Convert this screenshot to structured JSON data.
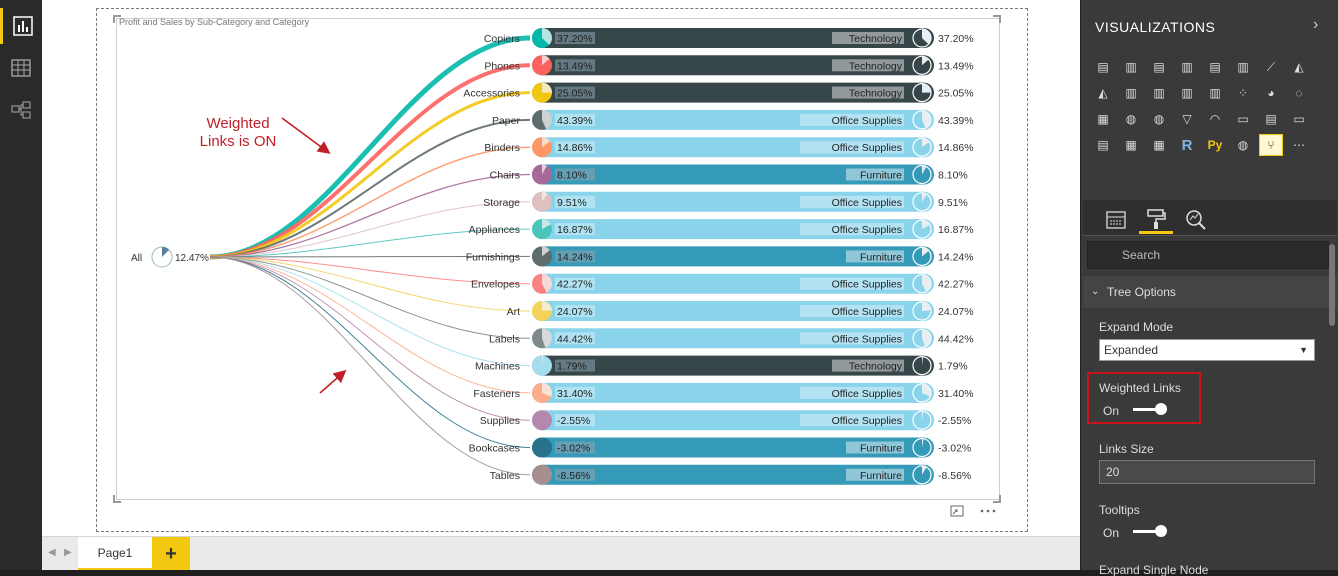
{
  "rail": {
    "items": [
      {
        "name": "report-view",
        "icon": "bar-chart-icon",
        "active": true
      },
      {
        "name": "data-view",
        "icon": "table-icon",
        "active": false
      },
      {
        "name": "model-view",
        "icon": "relationships-icon",
        "active": false
      }
    ]
  },
  "visual": {
    "title": "Profit and Sales by Sub-Category and Category",
    "root_label": "All",
    "root_pct": "12.47%",
    "annotation_text_line1": "Weighted",
    "annotation_text_line2": "Links is ON"
  },
  "colors": {
    "accent": "#f2c811",
    "technology": "#374649",
    "office_supplies": "#8ad4eb",
    "furniture": "#3599b8",
    "annotation": "#c0202a"
  },
  "chart_data": {
    "type": "tree",
    "title": "Profit and Sales by Sub-Category and Category",
    "root": {
      "label": "All",
      "pct": "12.47%"
    },
    "nodes": [
      {
        "label": "Copiers",
        "pct": "37.20%",
        "category": "Technology",
        "weight": 10,
        "link_color": "#01b8aa"
      },
      {
        "label": "Phones",
        "pct": "13.49%",
        "category": "Technology",
        "weight": 8,
        "link_color": "#fd625e"
      },
      {
        "label": "Accessories",
        "pct": "25.05%",
        "category": "Technology",
        "weight": 6,
        "link_color": "#f2c80f"
      },
      {
        "label": "Paper",
        "pct": "43.39%",
        "category": "Office Supplies",
        "weight": 4,
        "link_color": "#5f6b6d"
      },
      {
        "label": "Binders",
        "pct": "14.86%",
        "category": "Office Supplies",
        "weight": 3,
        "link_color": "#fe9666"
      },
      {
        "label": "Chairs",
        "pct": "8.10%",
        "category": "Furniture",
        "weight": 2.5,
        "link_color": "#a66999"
      },
      {
        "label": "Storage",
        "pct": "9.51%",
        "category": "Office Supplies",
        "weight": 2,
        "link_color": "#dfbfbf"
      },
      {
        "label": "Appliances",
        "pct": "16.87%",
        "category": "Office Supplies",
        "weight": 1.5,
        "link_color": "#4ac5bb"
      },
      {
        "label": "Furnishings",
        "pct": "14.24%",
        "category": "Furniture",
        "weight": 1.5,
        "link_color": "#5f6b6d"
      },
      {
        "label": "Envelopes",
        "pct": "42.27%",
        "category": "Office Supplies",
        "weight": 1,
        "link_color": "#fb8281"
      },
      {
        "label": "Art",
        "pct": "24.07%",
        "category": "Office Supplies",
        "weight": 1,
        "link_color": "#f4d25a"
      },
      {
        "label": "Labels",
        "pct": "44.42%",
        "category": "Office Supplies",
        "weight": 1,
        "link_color": "#7f898a"
      },
      {
        "label": "Machines",
        "pct": "1.79%",
        "category": "Technology",
        "weight": 1.2,
        "link_color": "#a4ddee"
      },
      {
        "label": "Fasteners",
        "pct": "31.40%",
        "category": "Office Supplies",
        "weight": 1,
        "link_color": "#fdab89"
      },
      {
        "label": "Supplies",
        "pct": "-2.55%",
        "category": "Office Supplies",
        "weight": 1,
        "link_color": "#b687ac"
      },
      {
        "label": "Bookcases",
        "pct": "-3.02%",
        "category": "Furniture",
        "weight": 1.2,
        "link_color": "#28738a"
      },
      {
        "label": "Tables",
        "pct": "-8.56%",
        "category": "Furniture",
        "weight": 1.5,
        "link_color": "#a78f8f"
      }
    ]
  },
  "tabs": {
    "page_label": "Page1",
    "add_label": "+"
  },
  "pane": {
    "title": "VISUALIZATIONS",
    "search_placeholder": "Search",
    "section": "Tree Options",
    "expand_mode_label": "Expand Mode",
    "expand_mode_value": "Expanded",
    "weighted_links_label": "Weighted Links",
    "weighted_links_value": "On",
    "links_size_label": "Links Size",
    "links_size_value": "20",
    "tooltips_label": "Tooltips",
    "tooltips_value": "On",
    "expand_single_label": "Expand Single Node",
    "viz_icons": [
      "stacked-bar-icon",
      "stacked-column-icon",
      "clustered-bar-icon",
      "clustered-column-icon",
      "100-bar-icon",
      "100-column-icon",
      "line-chart-icon",
      "area-chart-icon",
      "stacked-area-icon",
      "line-column-icon",
      "line-clustered-icon",
      "ribbon-icon",
      "waterfall-icon",
      "scatter-icon",
      "pie-icon",
      "donut-icon",
      "treemap-icon",
      "map-icon",
      "filled-map-icon",
      "funnel-icon",
      "gauge-icon",
      "card-icon",
      "multirow-card-icon",
      "kpi-icon",
      "slicer-icon",
      "table-icon",
      "matrix-icon",
      "r-visual-icon",
      "python-visual-icon",
      "globe-icon",
      "tree-visual-icon",
      "more-icon"
    ]
  }
}
